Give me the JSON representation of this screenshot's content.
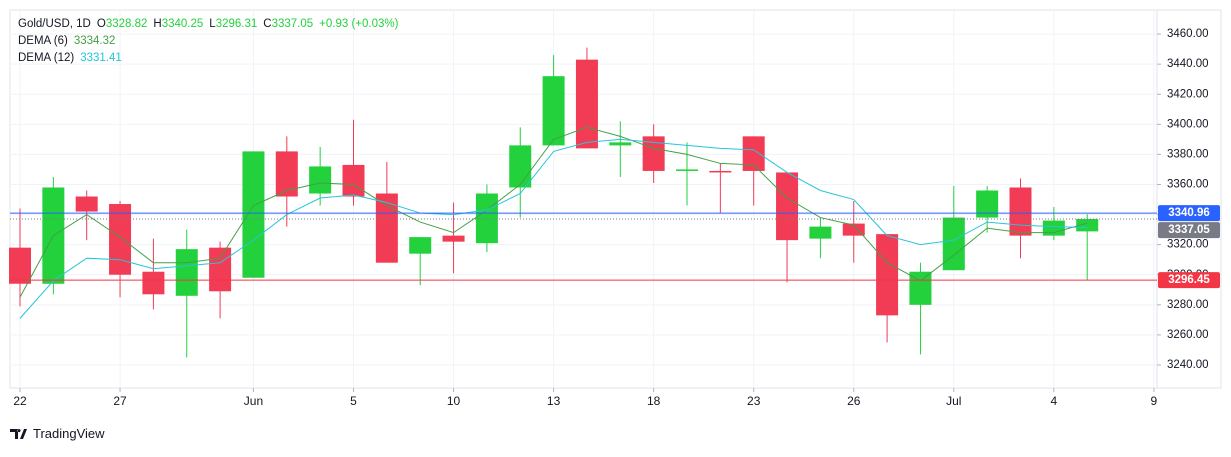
{
  "chart_data": {
    "type": "candlestick",
    "title": "Gold/USD, 1D",
    "ohlc_labels": [
      "O",
      "H",
      "L",
      "C"
    ],
    "change": "+0.93 (+0.03%)",
    "open": [
      3318,
      3294,
      3352,
      3347,
      3302,
      3286,
      3318,
      3298,
      3382,
      3354,
      3373,
      3354,
      3314,
      3326,
      3321,
      3358,
      3386,
      3443,
      3386,
      3392,
      3369,
      3369,
      3392,
      3368,
      3324,
      3334,
      3327,
      3280,
      3303,
      3338,
      3358,
      3326,
      3328.82
    ],
    "high": [
      3344,
      3365,
      3356,
      3349,
      3324,
      3330,
      3322,
      3382,
      3392,
      3385,
      3403,
      3375,
      3325,
      3348,
      3360,
      3398,
      3446,
      3451,
      3402,
      3400,
      3388,
      3374,
      3392,
      3368,
      3338,
      3349,
      3327,
      3308,
      3359,
      3359,
      3364,
      3345,
      3340.25
    ],
    "low": [
      3279,
      3287,
      3323,
      3285,
      3277,
      3245,
      3271,
      3298,
      3332,
      3346,
      3346,
      3308,
      3293,
      3301,
      3315,
      3338,
      3386,
      3384,
      3365,
      3361,
      3346,
      3341,
      3346,
      3295,
      3311,
      3308,
      3255,
      3247,
      3303,
      3328,
      3311,
      3323,
      3296.31
    ],
    "close": [
      3294,
      3358,
      3342,
      3300,
      3287,
      3317,
      3289,
      3382,
      3352,
      3372,
      3352,
      3308,
      3325,
      3322,
      3354,
      3386,
      3432,
      3384,
      3388,
      3369,
      3370,
      3368,
      3369,
      3323,
      3332,
      3326,
      3273,
      3302,
      3338,
      3356,
      3326,
      3336,
      3337.05
    ],
    "up_color": "#22d13c",
    "down_color": "#f23b55",
    "series": [
      {
        "name": "DEMA (6)",
        "color": "#43a047",
        "values": [
          3285,
          3326,
          3340,
          3325,
          3308,
          3308,
          3311,
          3346,
          3356,
          3361,
          3360,
          3346,
          3335,
          3328,
          3343,
          3360,
          3390,
          3398,
          3392,
          3384,
          3380,
          3374,
          3373,
          3351,
          3338,
          3333,
          3308,
          3296,
          3313,
          3331,
          3328,
          3328,
          3334.32
        ]
      },
      {
        "name": "DEMA (12)",
        "color": "#26c6da",
        "values": [
          3271,
          3296,
          3311,
          3310,
          3304,
          3306,
          3308,
          3323,
          3340,
          3351,
          3353,
          3348,
          3341,
          3340,
          3343,
          3354,
          3382,
          3388,
          3390,
          3388,
          3386,
          3384,
          3383,
          3368,
          3356,
          3350,
          3326,
          3320,
          3323,
          3335,
          3333,
          3332,
          3331.41
        ]
      }
    ],
    "ylim": [
      3224.7,
      3476
    ],
    "yticks": [
      {
        "value": 3240,
        "label": "3240.00"
      },
      {
        "value": 3260,
        "label": "3260.00"
      },
      {
        "value": 3280,
        "label": "3280.00"
      },
      {
        "value": 3300,
        "label": "3300.00"
      },
      {
        "value": 3320,
        "label": "3320.00"
      },
      {
        "value": 3340,
        "label": "3340.00"
      },
      {
        "value": 3360,
        "label": "3360.00"
      },
      {
        "value": 3380,
        "label": "3380.00"
      },
      {
        "value": 3400,
        "label": "3400.00"
      },
      {
        "value": 3420,
        "label": "3420.00"
      },
      {
        "value": 3440,
        "label": "3440.00"
      },
      {
        "value": 3460,
        "label": "3460.00"
      }
    ],
    "xticks": [
      {
        "value": 0,
        "label": "22"
      },
      {
        "value": 3,
        "label": "27"
      },
      {
        "value": 7,
        "label": "Jun"
      },
      {
        "value": 10,
        "label": "5"
      },
      {
        "value": 13,
        "label": "10"
      },
      {
        "value": 16,
        "label": "13"
      },
      {
        "value": 19,
        "label": "18"
      },
      {
        "value": 22,
        "label": "23"
      },
      {
        "value": 25,
        "label": "26"
      },
      {
        "value": 28,
        "label": "Jul"
      },
      {
        "value": 31,
        "label": "4"
      },
      {
        "value": 34,
        "label": "9"
      }
    ],
    "grid": true,
    "price_lines": [
      {
        "value": 3340.96,
        "color": "#2962ff",
        "style": "solid"
      },
      {
        "value": 3337.05,
        "color": "#787b86",
        "style": "dotted"
      },
      {
        "value": 3296.45,
        "color": "#f23645",
        "style": "solid"
      }
    ],
    "watermark": "TradingView"
  }
}
